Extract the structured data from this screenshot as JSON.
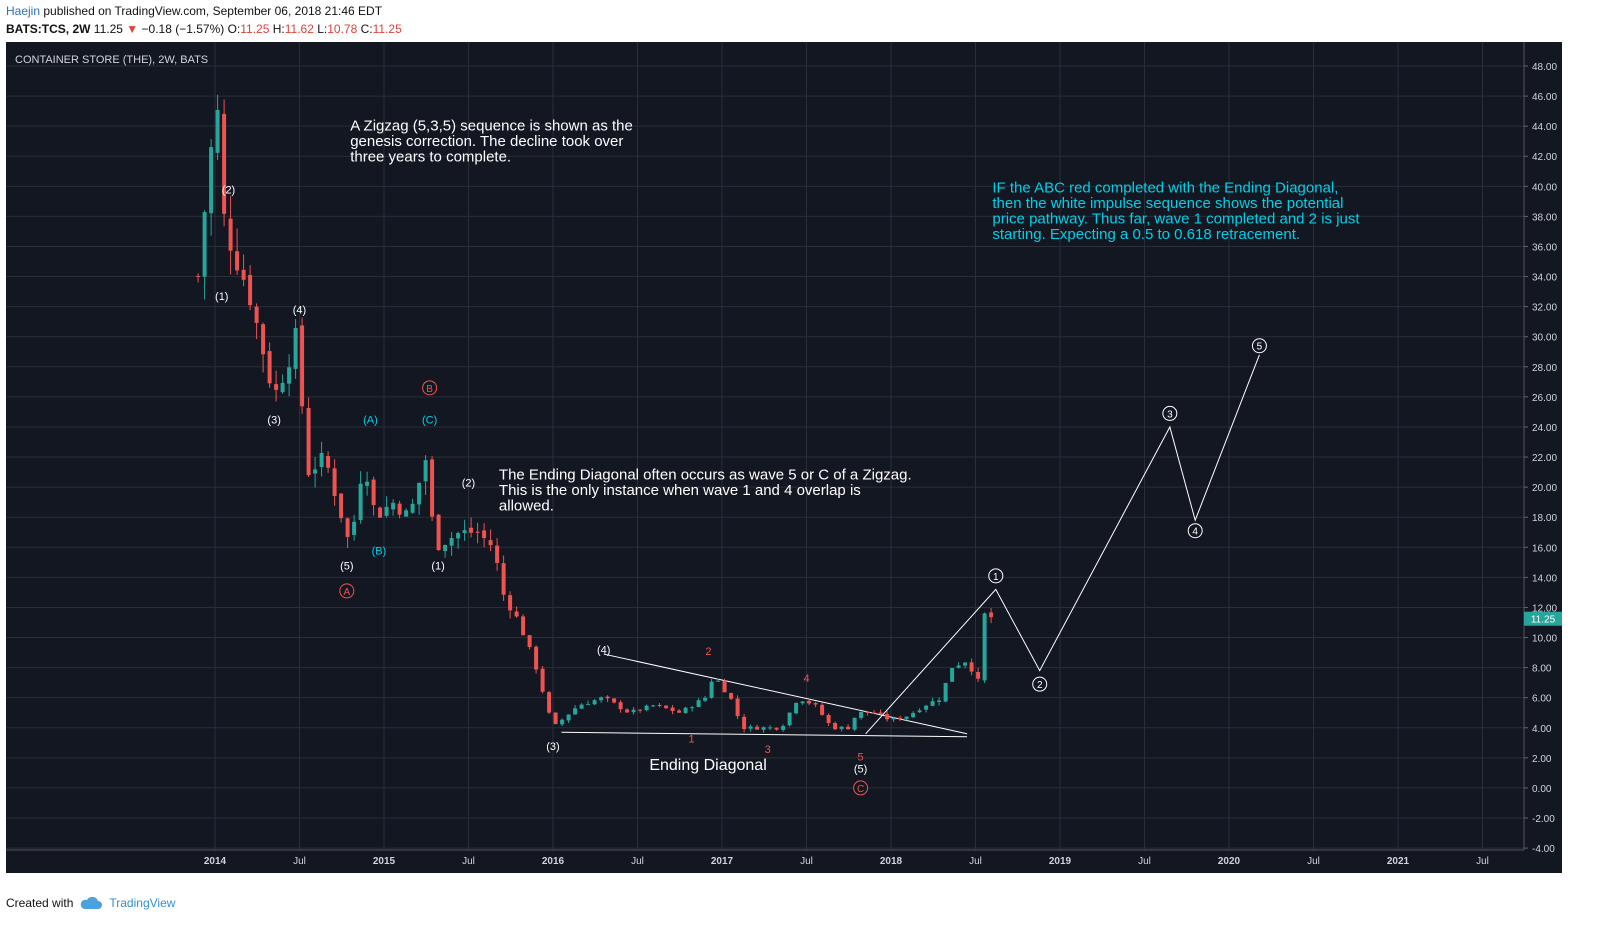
{
  "header": {
    "author": "Haejin",
    "published": "published on TradingView.com, September 06, 2018 21:46 EDT",
    "symbol": "BATS:TCS, 2W",
    "last": "11.25",
    "change": "−0.18 (−1.57%)",
    "o_label": "O:",
    "o": "11.25",
    "h_label": "H:",
    "h": "11.62",
    "l_label": "L:",
    "l": "10.78",
    "c_label": "C:",
    "c": "11.25"
  },
  "footer": {
    "created_with": "Created with",
    "brand": "TradingView"
  },
  "colors": {
    "bg": "#131722",
    "grid": "#2a2e39",
    "up": "#26a69a",
    "down": "#ef5350",
    "cyan": "#00d0e8",
    "white": "#ffffff",
    "red_label": "#ef5350",
    "axis_text": "#d1d4dc"
  },
  "chart_data": {
    "type": "candlestick",
    "title": "CONTAINER STORE (THE), 2W, BATS",
    "last_price_label": "11.25",
    "ylim": [
      -4,
      49
    ],
    "y_ticks": [
      "48.00",
      "46.00",
      "44.00",
      "42.00",
      "40.00",
      "38.00",
      "36.00",
      "34.00",
      "32.00",
      "30.00",
      "28.00",
      "26.00",
      "24.00",
      "22.00",
      "20.00",
      "18.00",
      "16.00",
      "14.00",
      "12.00",
      "10.00",
      "8.00",
      "6.00",
      "4.00",
      "2.00",
      "0.00",
      "-2.00",
      "-4.00"
    ],
    "x_ticks": [
      {
        "t": 2014.0,
        "label": "2014"
      },
      {
        "t": 2014.5,
        "label": "Jul"
      },
      {
        "t": 2015.0,
        "label": "2015"
      },
      {
        "t": 2015.5,
        "label": "Jul"
      },
      {
        "t": 2016.0,
        "label": "2016"
      },
      {
        "t": 2016.5,
        "label": "Jul"
      },
      {
        "t": 2017.0,
        "label": "2017"
      },
      {
        "t": 2017.5,
        "label": "Jul"
      },
      {
        "t": 2018.0,
        "label": "2018"
      },
      {
        "t": 2018.5,
        "label": "Jul"
      },
      {
        "t": 2019.0,
        "label": "2019"
      },
      {
        "t": 2019.5,
        "label": "Jul"
      },
      {
        "t": 2020.0,
        "label": "2020"
      },
      {
        "t": 2020.5,
        "label": "Jul"
      },
      {
        "t": 2021.0,
        "label": "2021"
      },
      {
        "t": 2021.5,
        "label": "Jul"
      }
    ],
    "candle_anchors": [
      {
        "t": 2013.9,
        "c": 34
      },
      {
        "t": 2013.97,
        "c": 42
      },
      {
        "t": 2014.02,
        "c": 45
      },
      {
        "t": 2014.05,
        "c": 38
      },
      {
        "t": 2014.1,
        "c": 36
      },
      {
        "t": 2014.2,
        "c": 33
      },
      {
        "t": 2014.35,
        "c": 26
      },
      {
        "t": 2014.42,
        "c": 28
      },
      {
        "t": 2014.48,
        "c": 30
      },
      {
        "t": 2014.55,
        "c": 21
      },
      {
        "t": 2014.65,
        "c": 22
      },
      {
        "t": 2014.8,
        "c": 16
      },
      {
        "t": 2014.88,
        "c": 22
      },
      {
        "t": 2014.95,
        "c": 18
      },
      {
        "t": 2015.05,
        "c": 19
      },
      {
        "t": 2015.15,
        "c": 18
      },
      {
        "t": 2015.25,
        "c": 22
      },
      {
        "t": 2015.3,
        "c": 16
      },
      {
        "t": 2015.45,
        "c": 17
      },
      {
        "t": 2015.55,
        "c": 17
      },
      {
        "t": 2015.65,
        "c": 16
      },
      {
        "t": 2015.7,
        "c": 13
      },
      {
        "t": 2015.8,
        "c": 11
      },
      {
        "t": 2015.9,
        "c": 8
      },
      {
        "t": 2016.0,
        "c": 4
      },
      {
        "t": 2016.15,
        "c": 5.5
      },
      {
        "t": 2016.3,
        "c": 6
      },
      {
        "t": 2016.45,
        "c": 5
      },
      {
        "t": 2016.6,
        "c": 5.5
      },
      {
        "t": 2016.75,
        "c": 5
      },
      {
        "t": 2016.9,
        "c": 6
      },
      {
        "t": 2016.95,
        "c": 7.5
      },
      {
        "t": 2017.05,
        "c": 6
      },
      {
        "t": 2017.12,
        "c": 4
      },
      {
        "t": 2017.25,
        "c": 4
      },
      {
        "t": 2017.35,
        "c": 4
      },
      {
        "t": 2017.45,
        "c": 6
      },
      {
        "t": 2017.55,
        "c": 5.5
      },
      {
        "t": 2017.65,
        "c": 4
      },
      {
        "t": 2017.75,
        "c": 4
      },
      {
        "t": 2017.8,
        "c": 5
      },
      {
        "t": 2017.9,
        "c": 5
      },
      {
        "t": 2018.0,
        "c": 4.5
      },
      {
        "t": 2018.1,
        "c": 4.8
      },
      {
        "t": 2018.2,
        "c": 5.5
      },
      {
        "t": 2018.3,
        "c": 6
      },
      {
        "t": 2018.35,
        "c": 8
      },
      {
        "t": 2018.45,
        "c": 8.5
      },
      {
        "t": 2018.52,
        "c": 7
      },
      {
        "t": 2018.55,
        "c": 11.5
      },
      {
        "t": 2018.62,
        "c": 11.25
      }
    ],
    "wave_labels": [
      {
        "text": "(2)",
        "t": 2014.08,
        "v": 39.8,
        "color": "white"
      },
      {
        "text": "(1)",
        "t": 2014.04,
        "v": 32.7,
        "color": "white"
      },
      {
        "text": "(4)",
        "t": 2014.5,
        "v": 31.8,
        "color": "white"
      },
      {
        "text": "(3)",
        "t": 2014.35,
        "v": 24.5,
        "color": "white"
      },
      {
        "text": "(5)",
        "t": 2014.78,
        "v": 14.8,
        "color": "white"
      },
      {
        "text": "(A)",
        "t": 2014.92,
        "v": 24.5,
        "color": "cyan"
      },
      {
        "text": "(B)",
        "t": 2014.97,
        "v": 15.8,
        "color": "cyan"
      },
      {
        "text": "(C)",
        "t": 2015.27,
        "v": 24.5,
        "color": "cyan"
      },
      {
        "text": "(1)",
        "t": 2015.32,
        "v": 14.8,
        "color": "white"
      },
      {
        "text": "(2)",
        "t": 2015.5,
        "v": 20.3,
        "color": "white"
      },
      {
        "text": "(3)",
        "t": 2016.0,
        "v": 2.8,
        "color": "white"
      },
      {
        "text": "(4)",
        "t": 2016.3,
        "v": 9.2,
        "color": "white"
      },
      {
        "text": "(5)",
        "t": 2017.82,
        "v": 1.3,
        "color": "white"
      },
      {
        "text": "1",
        "t": 2016.82,
        "v": 3.3,
        "color": "red"
      },
      {
        "text": "2",
        "t": 2016.92,
        "v": 9.1,
        "color": "red"
      },
      {
        "text": "3",
        "t": 2017.27,
        "v": 2.6,
        "color": "red"
      },
      {
        "text": "4",
        "t": 2017.5,
        "v": 7.3,
        "color": "red"
      },
      {
        "text": "5",
        "t": 2017.82,
        "v": 2.1,
        "color": "red"
      }
    ],
    "circled_labels": [
      {
        "text": "A",
        "t": 2014.78,
        "v": 13.1,
        "color": "red"
      },
      {
        "text": "B",
        "t": 2015.27,
        "v": 26.6,
        "color": "red"
      },
      {
        "text": "C",
        "t": 2017.82,
        "v": 0.0,
        "color": "red"
      },
      {
        "text": "1",
        "t": 2018.62,
        "v": 14.1,
        "color": "white"
      },
      {
        "text": "2",
        "t": 2018.88,
        "v": 6.9,
        "color": "white"
      },
      {
        "text": "3",
        "t": 2019.65,
        "v": 24.9,
        "color": "white"
      },
      {
        "text": "4",
        "t": 2019.8,
        "v": 17.1,
        "color": "white"
      },
      {
        "text": "5",
        "t": 2020.18,
        "v": 29.4,
        "color": "white"
      }
    ],
    "projection_path": [
      {
        "t": 2017.85,
        "v": 3.6
      },
      {
        "t": 2018.62,
        "v": 13.2
      },
      {
        "t": 2018.88,
        "v": 7.8
      },
      {
        "t": 2019.65,
        "v": 24.0
      },
      {
        "t": 2019.8,
        "v": 17.8
      },
      {
        "t": 2020.18,
        "v": 28.8
      }
    ],
    "diagonal_lines": [
      {
        "from": {
          "t": 2016.3,
          "v": 8.9
        },
        "to": {
          "t": 2018.45,
          "v": 3.6
        }
      },
      {
        "from": {
          "t": 2016.05,
          "v": 3.7
        },
        "to": {
          "t": 2018.45,
          "v": 3.4
        }
      }
    ],
    "annotations": [
      {
        "lines": [
          "A Zigzag (5,3,5) sequence is shown as the",
          "genesis correction. The decline took over",
          "three years to complete."
        ],
        "t": 2014.8,
        "v": 43.7,
        "color": "white"
      },
      {
        "lines": [
          "The Ending Diagonal often occurs as wave 5 or C of a Zigzag.",
          "This is the only instance when wave 1 and 4 overlap is",
          "allowed."
        ],
        "t": 2015.68,
        "v": 20.5,
        "color": "white"
      },
      {
        "lines": [
          "IF the ABC red completed with the Ending Diagonal,",
          "then the white impulse sequence shows the potential",
          "price pathway. Thus far, wave 1 completed and 2 is just",
          "starting. Expecting a 0.5 to 0.618 retracement."
        ],
        "t": 2018.6,
        "v": 39.6,
        "color": "cyan"
      },
      {
        "lines": [
          "Ending Diagonal"
        ],
        "t": 2016.57,
        "v": 1.2,
        "color": "white"
      }
    ]
  }
}
